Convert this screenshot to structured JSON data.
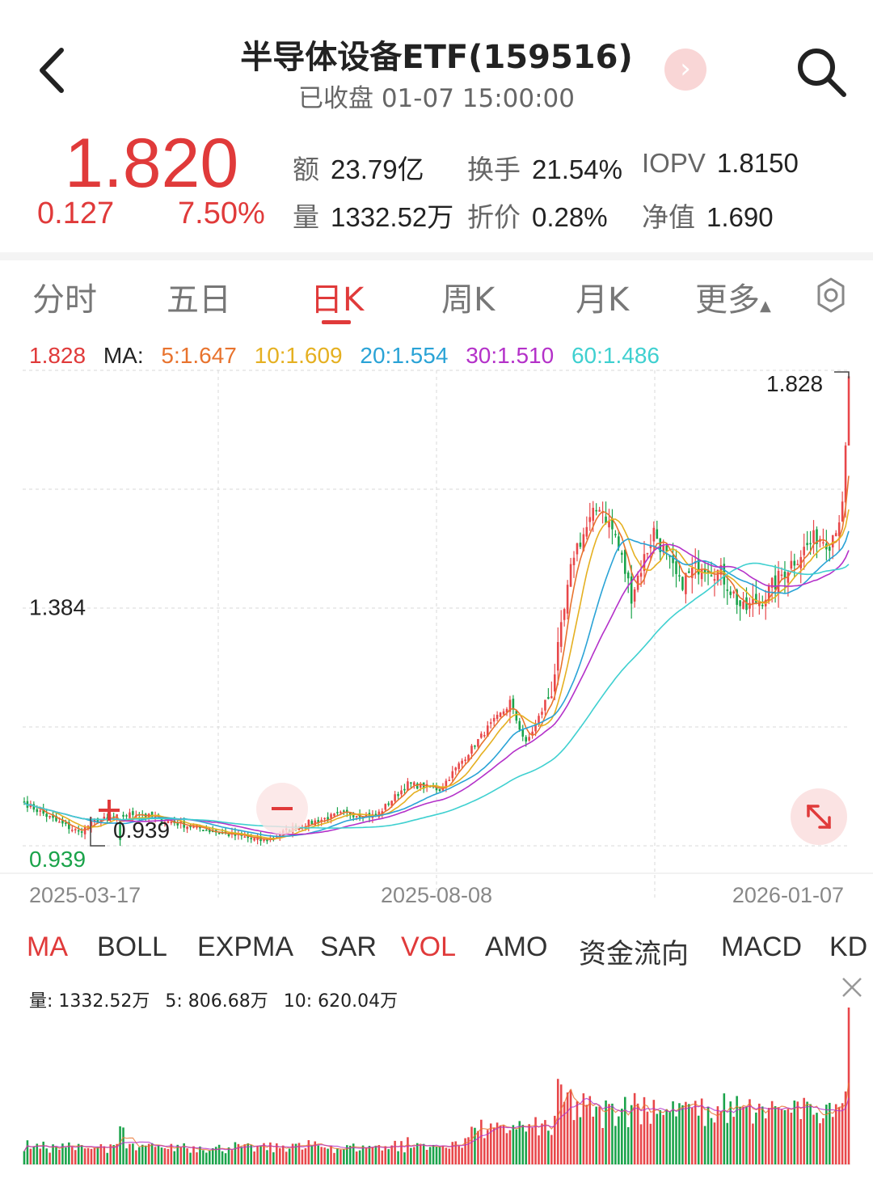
{
  "header": {
    "title": "半导体设备ETF(159516)",
    "subtitle": "已收盘 01-07 15:00:00"
  },
  "quote": {
    "price": "1.820",
    "change": "0.127",
    "change_pct": "7.50%",
    "stats": [
      {
        "label": "额",
        "value": "23.79亿"
      },
      {
        "label": "换手",
        "value": "21.54%"
      },
      {
        "label": "IOPV",
        "value": "1.8150"
      },
      {
        "label": "量",
        "value": "1332.52万"
      },
      {
        "label": "折价",
        "value": "0.28%"
      },
      {
        "label": "净值",
        "value": "1.690"
      }
    ]
  },
  "tabs": [
    {
      "label": "分时"
    },
    {
      "label": "五日"
    },
    {
      "label": "日K"
    },
    {
      "label": "周K"
    },
    {
      "label": "月K"
    },
    {
      "label": "更多"
    }
  ],
  "ma_legend": {
    "price": "1.828",
    "label": "MA:",
    "items": [
      {
        "text": "5:1.647",
        "color": "#e8732e"
      },
      {
        "text": "10:1.609",
        "color": "#e5b021"
      },
      {
        "text": "20:1.554",
        "color": "#2aa3d6"
      },
      {
        "text": "30:1.510",
        "color": "#b431c9"
      },
      {
        "text": "60:1.486",
        "color": "#3fd0d0"
      }
    ]
  },
  "indicator_tabs": [
    "MA",
    "BOLL",
    "EXPMA",
    "SAR",
    "VOL",
    "AMO",
    "资金流向",
    "MACD",
    "KD"
  ],
  "volume_legend": {
    "vol": "量:  1332.52万",
    "ma5": "5:  806.68万",
    "ma10": "10:  620.04万"
  },
  "chart_data": {
    "type": "candlestick",
    "x_ticks": [
      "2025-03-17",
      "2025-08-08",
      "2026-01-07"
    ],
    "y_labels": [
      "1.384",
      "0.939"
    ],
    "annotations": {
      "high": "1.828",
      "low": "0.939"
    },
    "ylim": [
      0.939,
      1.828
    ],
    "close_anchors": [
      {
        "i": 0,
        "v": 1.02
      },
      {
        "i": 10,
        "v": 0.985
      },
      {
        "i": 17,
        "v": 0.965
      },
      {
        "i": 22,
        "v": 0.985
      },
      {
        "i": 35,
        "v": 1.0
      },
      {
        "i": 45,
        "v": 0.985
      },
      {
        "i": 60,
        "v": 0.965
      },
      {
        "i": 75,
        "v": 0.948
      },
      {
        "i": 85,
        "v": 0.975
      },
      {
        "i": 100,
        "v": 1.0
      },
      {
        "i": 110,
        "v": 0.995
      },
      {
        "i": 120,
        "v": 1.055
      },
      {
        "i": 130,
        "v": 1.045
      },
      {
        "i": 145,
        "v": 1.16
      },
      {
        "i": 152,
        "v": 1.205
      },
      {
        "i": 157,
        "v": 1.13
      },
      {
        "i": 165,
        "v": 1.23
      },
      {
        "i": 172,
        "v": 1.49
      },
      {
        "i": 180,
        "v": 1.58
      },
      {
        "i": 185,
        "v": 1.52
      },
      {
        "i": 190,
        "v": 1.41
      },
      {
        "i": 197,
        "v": 1.53
      },
      {
        "i": 205,
        "v": 1.43
      },
      {
        "i": 212,
        "v": 1.47
      },
      {
        "i": 218,
        "v": 1.45
      },
      {
        "i": 225,
        "v": 1.38
      },
      {
        "i": 232,
        "v": 1.41
      },
      {
        "i": 240,
        "v": 1.47
      },
      {
        "i": 248,
        "v": 1.52
      },
      {
        "i": 252,
        "v": 1.51
      },
      {
        "i": 256,
        "v": 1.57
      },
      {
        "i": 257,
        "v": 1.69
      },
      {
        "i": 258,
        "v": 1.82
      }
    ],
    "volume_unit": "万",
    "volume_last": 1332.52,
    "volume_ma5": 806.68,
    "volume_ma10": 620.04
  }
}
